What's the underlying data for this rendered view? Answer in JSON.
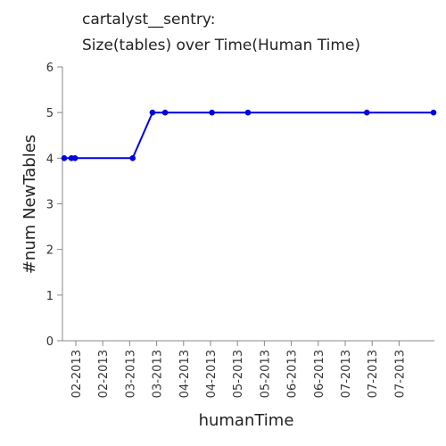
{
  "chart_data": {
    "type": "line",
    "title": "cartalyst__sentry:",
    "subtitle": "Size(tables) over Time(Human Time)",
    "xlabel": "humanTime",
    "ylabel": "#num NewTables",
    "ylim": [
      0,
      6
    ],
    "yticks": [
      0,
      1,
      2,
      3,
      4,
      5,
      6
    ],
    "x_tick_labels": [
      "02-2013",
      "02-2013",
      "03-2013",
      "03-2013",
      "04-2013",
      "04-2013",
      "05-2013",
      "05-2013",
      "06-2013",
      "06-2013",
      "07-2013",
      "07-2013",
      "07-2013"
    ],
    "grid": false,
    "series": [
      {
        "color": "#0000dd",
        "x": [
          "2013-01-16",
          "2013-01-20",
          "2013-01-22",
          "2013-02-23",
          "2013-03-06",
          "2013-03-13",
          "2013-04-08",
          "2013-04-28",
          "2013-07-03",
          "2013-08-09"
        ],
        "values": [
          4,
          4,
          4,
          4,
          5,
          5,
          5,
          5,
          5,
          5
        ]
      }
    ]
  }
}
